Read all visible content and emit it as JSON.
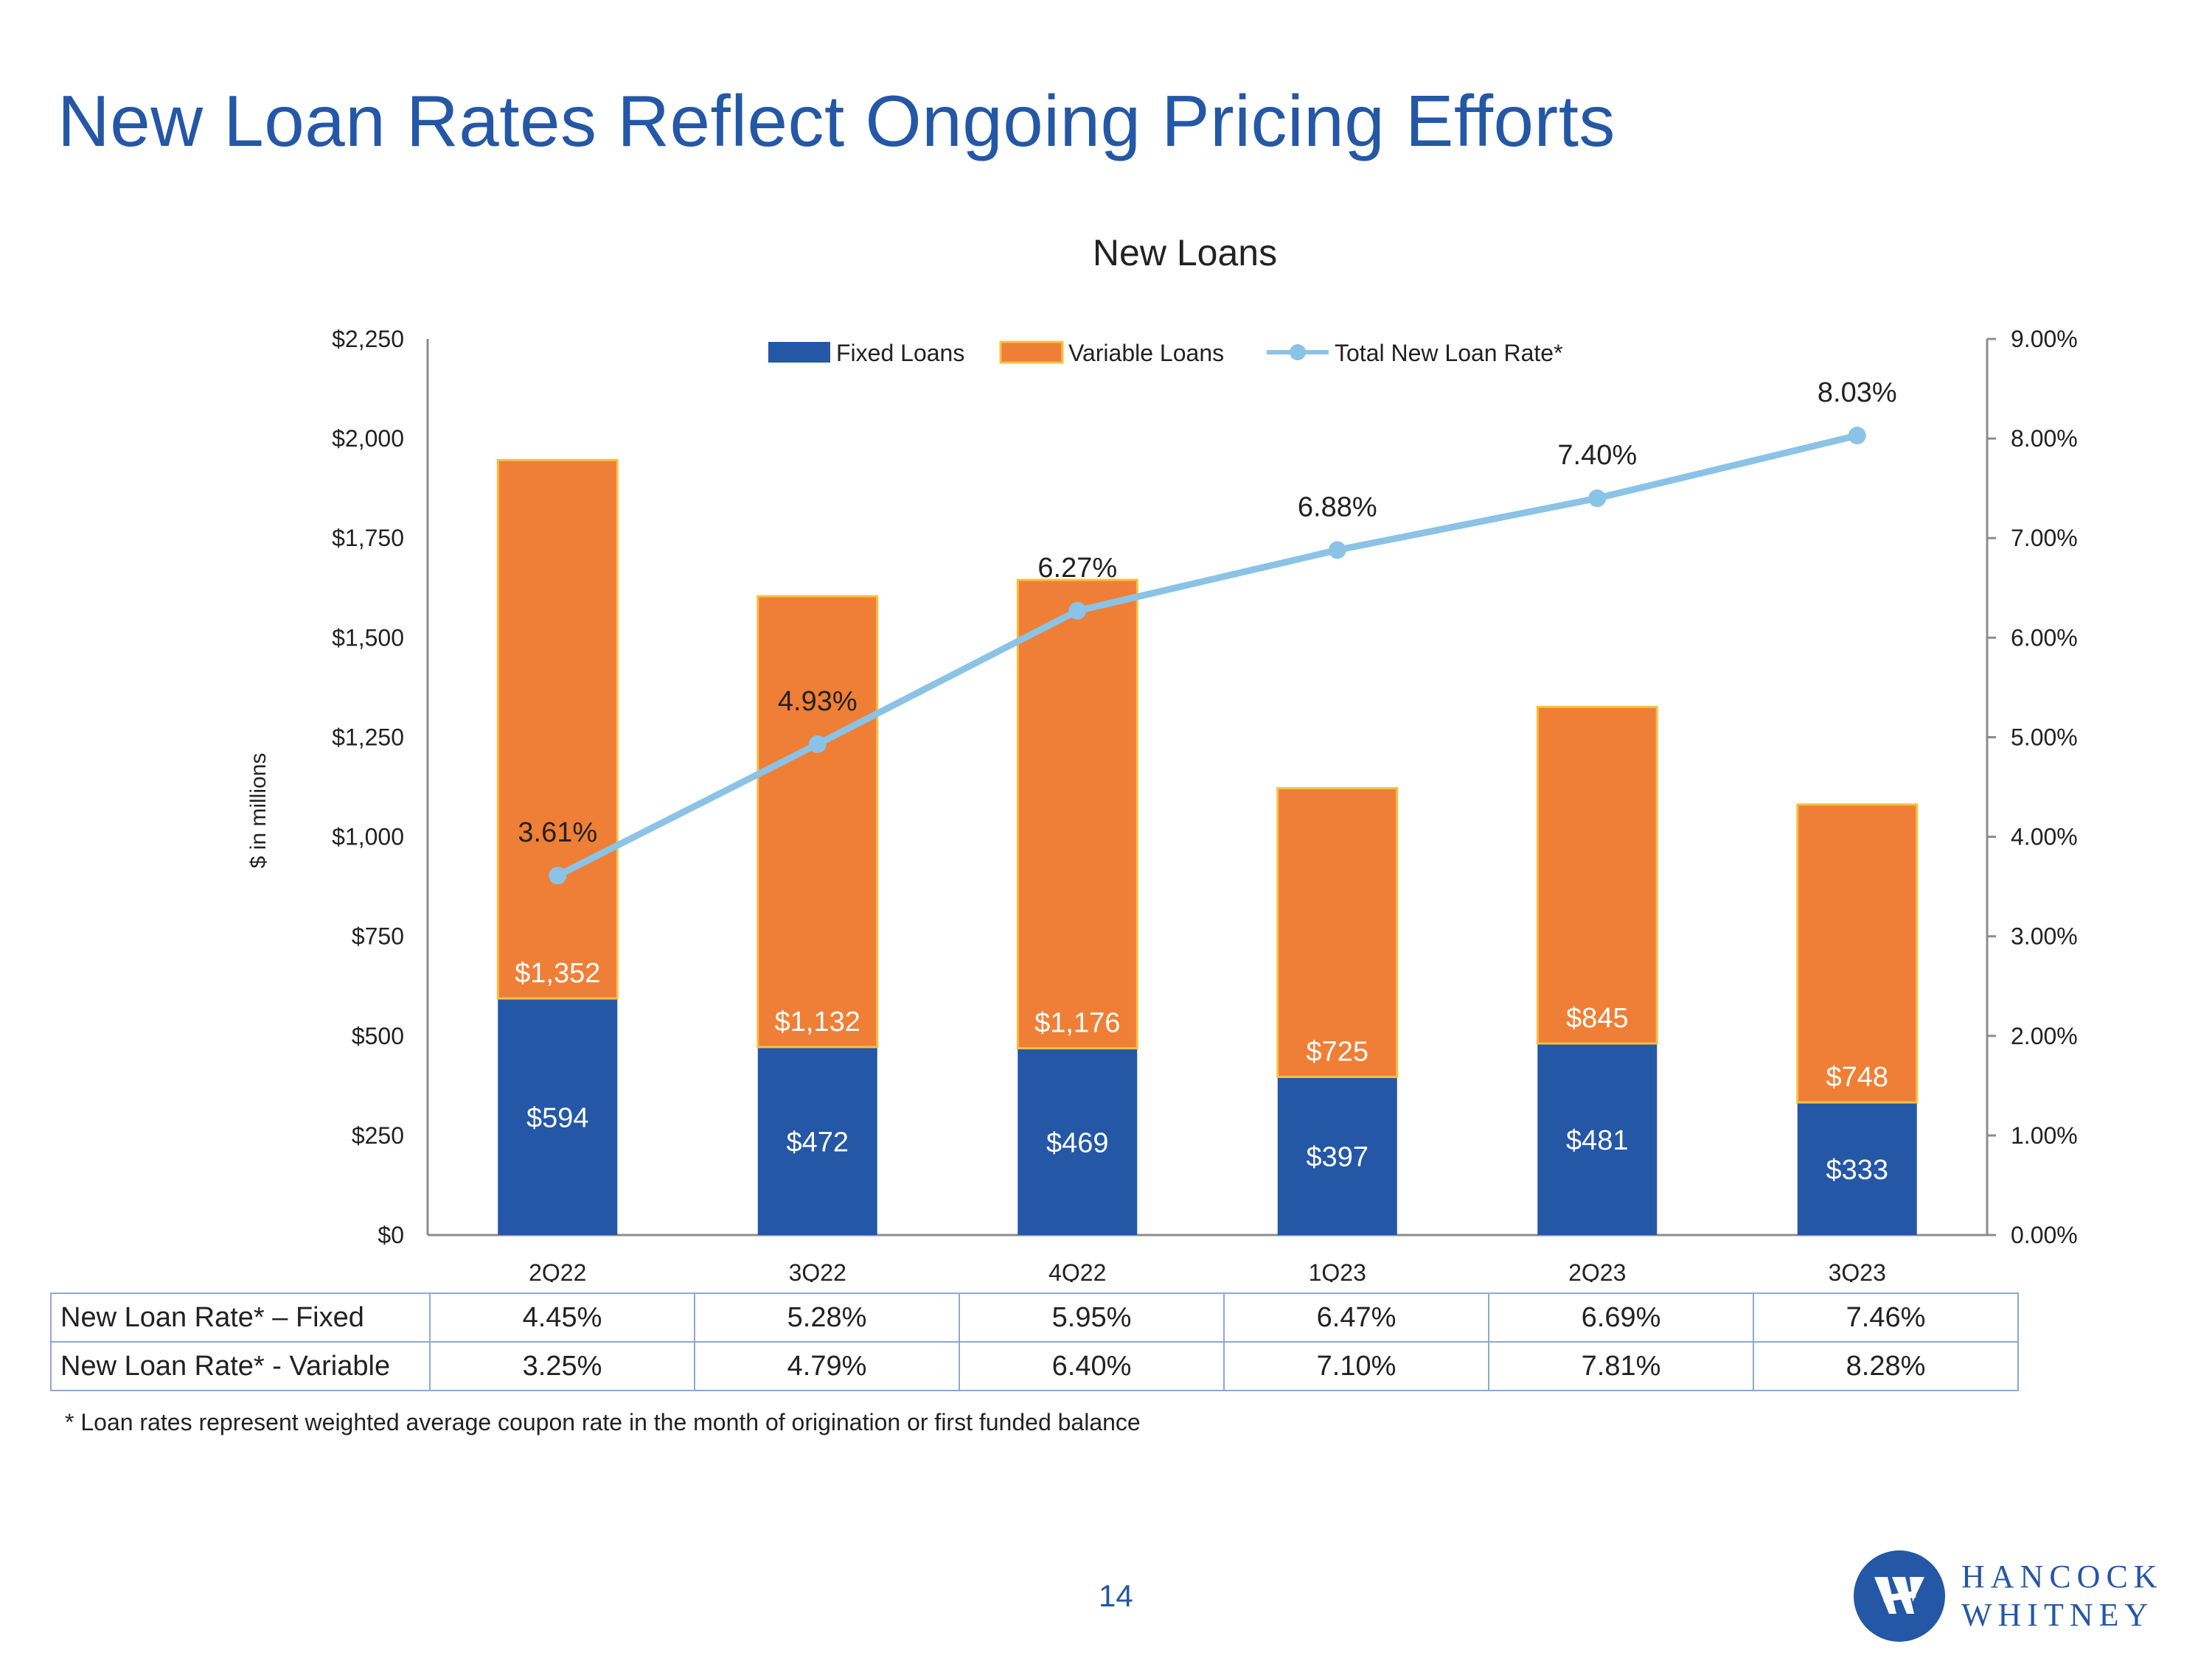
{
  "page": {
    "title": "New Loan Rates Reflect Ongoing Pricing Efforts",
    "page_number": "14",
    "footnote": "* Loan rates represent weighted average coupon rate in the month of origination or first funded balance"
  },
  "logo": {
    "line1": "HANCOCK",
    "line2": "WHITNEY",
    "icon": "hancock-whitney-logo-icon",
    "color": "#2457a6"
  },
  "colors": {
    "fixed": "#2457a6",
    "variable": "#ef7f36",
    "variable_border": "#f7c044",
    "rate_line": "#8bc3e6",
    "axis": "#8c8c8c"
  },
  "chart_data": {
    "type": "bar",
    "stacked": true,
    "title": "New Loans",
    "ylabel": "$ in millions",
    "xlabel": "",
    "categories": [
      "2Q22",
      "3Q22",
      "4Q22",
      "1Q23",
      "2Q23",
      "3Q23"
    ],
    "series": [
      {
        "name": "Fixed Loans",
        "axis": "left",
        "values": [
          594,
          472,
          469,
          397,
          481,
          333
        ],
        "labels": [
          "$594",
          "$472",
          "$469",
          "$397",
          "$481",
          "$333"
        ]
      },
      {
        "name": "Variable Loans",
        "axis": "left",
        "values": [
          1352,
          1132,
          1176,
          725,
          845,
          748
        ],
        "labels": [
          "$1,352",
          "$1,132",
          "$1,176",
          "$725",
          "$845",
          "$748"
        ]
      },
      {
        "name": "Total New Loan Rate*",
        "axis": "right",
        "type": "line",
        "values": [
          3.61,
          4.93,
          6.27,
          6.88,
          7.4,
          8.03
        ],
        "labels": [
          "3.61%",
          "4.93%",
          "6.27%",
          "6.88%",
          "7.40%",
          "8.03%"
        ]
      }
    ],
    "ylim": [
      0,
      2250
    ],
    "y2lim": [
      0,
      9
    ],
    "yticks": [
      "$0",
      "$250",
      "$500",
      "$750",
      "$1,000",
      "$1,250",
      "$1,500",
      "$1,750",
      "$2,000",
      "$2,250"
    ],
    "y2ticks": [
      "0.00%",
      "1.00%",
      "2.00%",
      "3.00%",
      "4.00%",
      "5.00%",
      "6.00%",
      "7.00%",
      "8.00%",
      "9.00%"
    ],
    "legend": [
      "Fixed Loans",
      "Variable Loans",
      "Total New Loan Rate*"
    ],
    "legend_position": "top-center",
    "grid": false
  },
  "table": {
    "rows": [
      {
        "label": "New Loan Rate* – Fixed",
        "values": [
          "4.45%",
          "5.28%",
          "5.95%",
          "6.47%",
          "6.69%",
          "7.46%"
        ]
      },
      {
        "label": "New Loan Rate* - Variable",
        "values": [
          "3.25%",
          "4.79%",
          "6.40%",
          "7.10%",
          "7.81%",
          "8.28%"
        ]
      }
    ]
  }
}
